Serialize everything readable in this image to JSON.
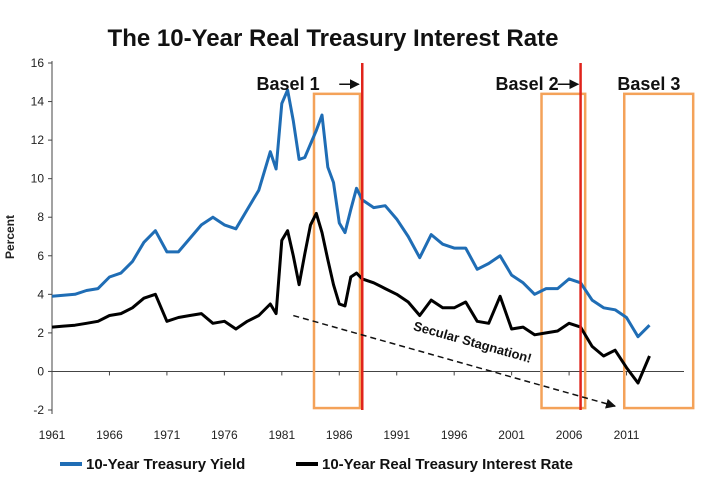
{
  "chart_data": {
    "type": "line",
    "title": "The 10-Year Real Treasury Interest Rate",
    "ylabel": "Percent",
    "xlim": [
      1961,
      2016
    ],
    "ylim": [
      -2,
      16
    ],
    "x_ticks": [
      "1961",
      "1966",
      "1971",
      "1976",
      "1981",
      "1986",
      "1991",
      "1996",
      "2001",
      "2006",
      "2011"
    ],
    "y_ticks": [
      "16",
      "14",
      "12",
      "10",
      "8",
      "6",
      "4",
      "2",
      "0",
      "-2"
    ],
    "grid": false,
    "legend_position": "bottom",
    "series": [
      {
        "name": "10-Year Treasury Yield",
        "color": "#1f6db5",
        "x": [
          1961,
          1962,
          1963,
          1964,
          1965,
          1966,
          1967,
          1968,
          1969,
          1970,
          1971,
          1972,
          1973,
          1974,
          1975,
          1976,
          1977,
          1978,
          1979,
          1980,
          1980.5,
          1981,
          1981.5,
          1982,
          1982.5,
          1983,
          1983.5,
          1984,
          1984.5,
          1985,
          1985.5,
          1986,
          1986.5,
          1987,
          1987.5,
          1988,
          1989,
          1990,
          1991,
          1992,
          1993,
          1994,
          1995,
          1996,
          1997,
          1998,
          1999,
          2000,
          2001,
          2002,
          2003,
          2004,
          2005,
          2006,
          2007,
          2008,
          2009,
          2010,
          2011,
          2012,
          2013
        ],
        "y": [
          3.9,
          3.95,
          4.0,
          4.2,
          4.3,
          4.9,
          5.1,
          5.7,
          6.7,
          7.3,
          6.2,
          6.2,
          6.9,
          7.6,
          8.0,
          7.6,
          7.4,
          8.4,
          9.4,
          11.4,
          10.5,
          13.9,
          14.6,
          13.0,
          11.0,
          11.1,
          11.8,
          12.5,
          13.3,
          10.6,
          9.8,
          7.7,
          7.2,
          8.4,
          9.5,
          8.9,
          8.5,
          8.6,
          7.9,
          7.0,
          5.9,
          7.1,
          6.6,
          6.4,
          6.4,
          5.3,
          5.6,
          6.0,
          5.0,
          4.6,
          4.0,
          4.3,
          4.3,
          4.8,
          4.6,
          3.7,
          3.3,
          3.2,
          2.8,
          1.8,
          2.4
        ]
      },
      {
        "name": "10-Year Real Treasury Interest Rate",
        "color": "#000000",
        "x": [
          1961,
          1962,
          1963,
          1964,
          1965,
          1966,
          1967,
          1968,
          1969,
          1970,
          1971,
          1972,
          1973,
          1974,
          1975,
          1976,
          1977,
          1978,
          1979,
          1980,
          1980.5,
          1981,
          1981.5,
          1982,
          1982.5,
          1983,
          1983.5,
          1984,
          1984.5,
          1985,
          1985.5,
          1986,
          1986.5,
          1987,
          1987.5,
          1988,
          1989,
          1990,
          1991,
          1992,
          1993,
          1994,
          1995,
          1996,
          1997,
          1998,
          1999,
          2000,
          2001,
          2002,
          2003,
          2004,
          2005,
          2006,
          2007,
          2008,
          2009,
          2010,
          2011,
          2012,
          2013
        ],
        "y": [
          2.3,
          2.35,
          2.4,
          2.5,
          2.6,
          2.9,
          3.0,
          3.3,
          3.8,
          4.0,
          2.6,
          2.8,
          2.9,
          3.0,
          2.5,
          2.6,
          2.2,
          2.6,
          2.9,
          3.5,
          3.0,
          6.8,
          7.3,
          6.0,
          4.5,
          6.1,
          7.6,
          8.2,
          7.2,
          5.8,
          4.5,
          3.5,
          3.4,
          4.9,
          5.1,
          4.8,
          4.6,
          4.3,
          4.0,
          3.6,
          2.9,
          3.7,
          3.3,
          3.3,
          3.6,
          2.6,
          2.5,
          3.9,
          2.2,
          2.3,
          1.9,
          2.0,
          2.1,
          2.5,
          2.3,
          1.3,
          0.8,
          1.1,
          0.2,
          -0.6,
          0.8
        ]
      }
    ],
    "regulation_markers": [
      {
        "label": "Basel 1",
        "year": 1988
      },
      {
        "label": "Basel 2",
        "year": 2007
      }
    ],
    "regulation_boxes": [
      {
        "x0": 1983.8,
        "x1": 1987.8,
        "y0": -1.9,
        "y1": 14.4
      },
      {
        "x0": 2003.6,
        "x1": 2007.4,
        "y0": -1.9,
        "y1": 14.4
      },
      {
        "x0": 2010.8,
        "x1": 2016.8,
        "y0": -1.9,
        "y1": 14.4
      }
    ],
    "labels": [
      {
        "text": "Basel 1",
        "year": 1978.8,
        "value": 14.6
      },
      {
        "text": "Basel 2",
        "year": 1999.6,
        "value": 14.6
      },
      {
        "text": "Basel 3",
        "year": 2010.2,
        "value": 14.6
      }
    ],
    "annotation": {
      "text": "Secular Stagnation!",
      "x0": 1982,
      "y0": 2.9,
      "x1": 2010,
      "y1": -1.8
    }
  }
}
